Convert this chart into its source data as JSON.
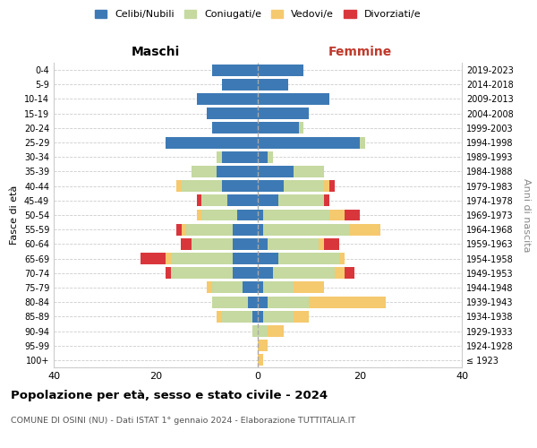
{
  "age_groups": [
    "100+",
    "95-99",
    "90-94",
    "85-89",
    "80-84",
    "75-79",
    "70-74",
    "65-69",
    "60-64",
    "55-59",
    "50-54",
    "45-49",
    "40-44",
    "35-39",
    "30-34",
    "25-29",
    "20-24",
    "15-19",
    "10-14",
    "5-9",
    "0-4"
  ],
  "birth_years": [
    "≤ 1923",
    "1924-1928",
    "1929-1933",
    "1934-1938",
    "1939-1943",
    "1944-1948",
    "1949-1953",
    "1954-1958",
    "1959-1963",
    "1964-1968",
    "1969-1973",
    "1974-1978",
    "1979-1983",
    "1984-1988",
    "1989-1993",
    "1994-1998",
    "1999-2003",
    "2004-2008",
    "2009-2013",
    "2014-2018",
    "2019-2023"
  ],
  "maschi": {
    "celibi": [
      0,
      0,
      0,
      1,
      2,
      3,
      5,
      5,
      5,
      5,
      4,
      6,
      7,
      8,
      7,
      18,
      9,
      10,
      12,
      7,
      9
    ],
    "coniugati": [
      0,
      0,
      1,
      6,
      7,
      6,
      12,
      12,
      8,
      9,
      7,
      5,
      8,
      5,
      1,
      0,
      0,
      0,
      0,
      0,
      0
    ],
    "vedovi": [
      0,
      0,
      0,
      1,
      0,
      1,
      0,
      1,
      0,
      1,
      1,
      0,
      1,
      0,
      0,
      0,
      0,
      0,
      0,
      0,
      0
    ],
    "divorziati": [
      0,
      0,
      0,
      0,
      0,
      0,
      1,
      5,
      2,
      1,
      0,
      1,
      0,
      0,
      0,
      0,
      0,
      0,
      0,
      0,
      0
    ]
  },
  "femmine": {
    "nubili": [
      0,
      0,
      0,
      1,
      2,
      1,
      3,
      4,
      2,
      1,
      1,
      4,
      5,
      7,
      2,
      20,
      8,
      10,
      14,
      6,
      9
    ],
    "coniugate": [
      0,
      0,
      2,
      6,
      8,
      6,
      12,
      12,
      10,
      17,
      13,
      9,
      8,
      6,
      1,
      1,
      1,
      0,
      0,
      0,
      0
    ],
    "vedove": [
      1,
      2,
      3,
      3,
      15,
      6,
      2,
      1,
      1,
      6,
      3,
      0,
      1,
      0,
      0,
      0,
      0,
      0,
      0,
      0,
      0
    ],
    "divorziate": [
      0,
      0,
      0,
      0,
      0,
      0,
      2,
      0,
      3,
      0,
      3,
      1,
      1,
      0,
      0,
      0,
      0,
      0,
      0,
      0,
      0
    ]
  },
  "colors": {
    "celibi": "#3d7ab5",
    "coniugati": "#c5d9a0",
    "vedovi": "#f5c96e",
    "divorziati": "#d9363c"
  },
  "xlim": 40,
  "title_main": "Popolazione per età, sesso e stato civile - 2024",
  "title_sub": "COMUNE DI OSINI (NU) - Dati ISTAT 1° gennaio 2024 - Elaborazione TUTTITALIA.IT",
  "ylabel": "Fasce di età",
  "ylabel_right": "Anni di nascita",
  "label_maschi": "Maschi",
  "label_femmine": "Femmine",
  "legend_labels": [
    "Celibi/Nubili",
    "Coniugati/e",
    "Vedovi/e",
    "Divorziati/e"
  ]
}
